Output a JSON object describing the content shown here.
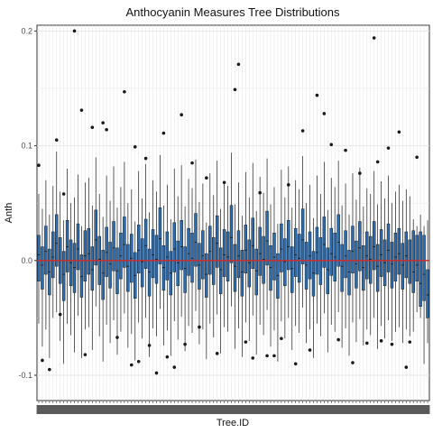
{
  "chart_data": {
    "type": "boxplot",
    "title": "Anthocyanin Measures Tree Distributions",
    "xlabel": "Tree.ID",
    "ylabel": "Anth",
    "ylim": [
      -0.122,
      0.205
    ],
    "yticks": [
      -0.1,
      0.0,
      0.1,
      0.2
    ],
    "ytick_labels": [
      "-0.1",
      "0.0",
      "0.1",
      "0.2"
    ],
    "grid": "on",
    "box_fill": "#2b6cb0",
    "box_stroke": "#1a1a1a",
    "reference_line": {
      "y": 0.0,
      "color": "#d62728"
    },
    "outliers_color": "#1a1a1a",
    "background": "#ffffff",
    "grid_color": "#e6e6e6",
    "n_trees": 110,
    "boxes": [
      {
        "q1": -0.018,
        "median": 0.005,
        "q3": 0.022,
        "low": -0.055,
        "high": 0.058
      },
      {
        "q1": -0.025,
        "median": -0.004,
        "q3": 0.012,
        "low": -0.075,
        "high": 0.045
      },
      {
        "q1": -0.012,
        "median": 0.008,
        "q3": 0.03,
        "low": -0.06,
        "high": 0.07
      },
      {
        "q1": -0.03,
        "median": -0.01,
        "q3": 0.01,
        "low": -0.085,
        "high": 0.04
      },
      {
        "q1": -0.015,
        "median": 0.003,
        "q3": 0.025,
        "low": -0.05,
        "high": 0.065
      },
      {
        "q1": -0.005,
        "median": 0.015,
        "q3": 0.04,
        "low": -0.045,
        "high": 0.095
      },
      {
        "q1": -0.02,
        "median": 0.0,
        "q3": 0.02,
        "low": -0.07,
        "high": 0.06
      },
      {
        "q1": -0.035,
        "median": -0.012,
        "q3": 0.008,
        "low": -0.09,
        "high": 0.035
      },
      {
        "q1": -0.01,
        "median": 0.012,
        "q3": 0.035,
        "low": -0.055,
        "high": 0.08
      },
      {
        "q1": -0.022,
        "median": -0.002,
        "q3": 0.018,
        "low": -0.065,
        "high": 0.05
      },
      {
        "q1": -0.028,
        "median": -0.006,
        "q3": 0.015,
        "low": -0.08,
        "high": 0.055
      },
      {
        "q1": -0.008,
        "median": 0.01,
        "q3": 0.032,
        "low": -0.048,
        "high": 0.075
      },
      {
        "q1": -0.032,
        "median": -0.014,
        "q3": 0.005,
        "low": -0.085,
        "high": 0.03
      },
      {
        "q1": -0.018,
        "median": 0.004,
        "q3": 0.026,
        "low": -0.06,
        "high": 0.068
      },
      {
        "q1": -0.012,
        "median": 0.006,
        "q3": 0.028,
        "low": -0.058,
        "high": 0.072
      },
      {
        "q1": -0.026,
        "median": -0.008,
        "q3": 0.012,
        "low": -0.078,
        "high": 0.048
      },
      {
        "q1": -0.004,
        "median": 0.018,
        "q3": 0.044,
        "low": -0.04,
        "high": 0.09
      },
      {
        "q1": -0.021,
        "median": 0.001,
        "q3": 0.021,
        "low": -0.066,
        "high": 0.058
      },
      {
        "q1": -0.034,
        "median": -0.011,
        "q3": 0.009,
        "low": -0.088,
        "high": 0.038
      },
      {
        "q1": -0.014,
        "median": 0.007,
        "q3": 0.029,
        "low": -0.056,
        "high": 0.074
      },
      {
        "q1": -0.024,
        "median": -0.003,
        "q3": 0.016,
        "low": -0.072,
        "high": 0.052
      },
      {
        "q1": -0.009,
        "median": 0.011,
        "q3": 0.034,
        "low": -0.052,
        "high": 0.082
      },
      {
        "q1": -0.029,
        "median": -0.009,
        "q3": 0.011,
        "low": -0.082,
        "high": 0.046
      },
      {
        "q1": -0.016,
        "median": 0.004,
        "q3": 0.024,
        "low": -0.062,
        "high": 0.064
      },
      {
        "q1": -0.006,
        "median": 0.014,
        "q3": 0.038,
        "low": -0.046,
        "high": 0.086
      },
      {
        "q1": -0.027,
        "median": -0.005,
        "q3": 0.014,
        "low": -0.076,
        "high": 0.05
      },
      {
        "q1": -0.019,
        "median": 0.002,
        "q3": 0.023,
        "low": -0.064,
        "high": 0.062
      },
      {
        "q1": -0.033,
        "median": -0.013,
        "q3": 0.007,
        "low": -0.087,
        "high": 0.034
      },
      {
        "q1": -0.011,
        "median": 0.009,
        "q3": 0.031,
        "low": -0.054,
        "high": 0.078
      },
      {
        "q1": -0.023,
        "median": -0.001,
        "q3": 0.019,
        "low": -0.068,
        "high": 0.054
      },
      {
        "q1": -0.007,
        "median": 0.013,
        "q3": 0.036,
        "low": -0.05,
        "high": 0.084
      },
      {
        "q1": -0.031,
        "median": -0.01,
        "q3": 0.01,
        "low": -0.084,
        "high": 0.042
      },
      {
        "q1": -0.015,
        "median": 0.005,
        "q3": 0.027,
        "low": -0.059,
        "high": 0.07
      },
      {
        "q1": -0.02,
        "median": 0.001,
        "q3": 0.022,
        "low": -0.066,
        "high": 0.06
      },
      {
        "q1": -0.003,
        "median": 0.019,
        "q3": 0.046,
        "low": -0.042,
        "high": 0.092
      },
      {
        "q1": -0.026,
        "median": -0.006,
        "q3": 0.013,
        "low": -0.074,
        "high": 0.048
      },
      {
        "q1": -0.017,
        "median": 0.003,
        "q3": 0.025,
        "low": -0.061,
        "high": 0.066
      },
      {
        "q1": -0.03,
        "median": -0.011,
        "q3": 0.008,
        "low": -0.083,
        "high": 0.036
      },
      {
        "q1": -0.01,
        "median": 0.01,
        "q3": 0.033,
        "low": -0.053,
        "high": 0.08
      },
      {
        "q1": -0.022,
        "median": -0.002,
        "q3": 0.017,
        "low": -0.069,
        "high": 0.056
      },
      {
        "q1": -0.008,
        "median": 0.012,
        "q3": 0.035,
        "low": -0.049,
        "high": 0.083
      },
      {
        "q1": -0.028,
        "median": -0.007,
        "q3": 0.012,
        "low": -0.079,
        "high": 0.047
      },
      {
        "q1": -0.013,
        "median": 0.006,
        "q3": 0.028,
        "low": -0.057,
        "high": 0.071
      },
      {
        "q1": -0.019,
        "median": 0.002,
        "q3": 0.024,
        "low": -0.063,
        "high": 0.063
      },
      {
        "q1": -0.005,
        "median": 0.016,
        "q3": 0.041,
        "low": -0.044,
        "high": 0.088
      },
      {
        "q1": -0.025,
        "median": -0.004,
        "q3": 0.015,
        "low": -0.073,
        "high": 0.051
      },
      {
        "q1": -0.016,
        "median": 0.004,
        "q3": 0.026,
        "low": -0.06,
        "high": 0.067
      },
      {
        "q1": -0.032,
        "median": -0.012,
        "q3": 0.006,
        "low": -0.086,
        "high": 0.033
      },
      {
        "q1": -0.012,
        "median": 0.008,
        "q3": 0.03,
        "low": -0.055,
        "high": 0.076
      },
      {
        "q1": -0.021,
        "median": 0.0,
        "q3": 0.02,
        "low": -0.067,
        "high": 0.057
      },
      {
        "q1": -0.006,
        "median": 0.015,
        "q3": 0.039,
        "low": -0.047,
        "high": 0.087
      },
      {
        "q1": -0.029,
        "median": -0.008,
        "q3": 0.011,
        "low": -0.081,
        "high": 0.045
      },
      {
        "q1": -0.014,
        "median": 0.005,
        "q3": 0.027,
        "low": -0.058,
        "high": 0.069
      },
      {
        "q1": -0.018,
        "median": 0.003,
        "q3": 0.025,
        "low": -0.062,
        "high": 0.065
      },
      {
        "q1": -0.002,
        "median": 0.02,
        "q3": 0.048,
        "low": -0.04,
        "high": 0.094
      },
      {
        "q1": -0.027,
        "median": -0.005,
        "q3": 0.014,
        "low": -0.077,
        "high": 0.049
      },
      {
        "q1": -0.015,
        "median": 0.004,
        "q3": 0.026,
        "low": -0.059,
        "high": 0.068
      },
      {
        "q1": -0.031,
        "median": -0.01,
        "q3": 0.009,
        "low": -0.084,
        "high": 0.039
      },
      {
        "q1": -0.011,
        "median": 0.009,
        "q3": 0.031,
        "low": -0.054,
        "high": 0.077
      },
      {
        "q1": -0.023,
        "median": -0.002,
        "q3": 0.018,
        "low": -0.07,
        "high": 0.055
      },
      {
        "q1": -0.007,
        "median": 0.013,
        "q3": 0.037,
        "low": -0.048,
        "high": 0.085
      },
      {
        "q1": -0.03,
        "median": -0.009,
        "q3": 0.01,
        "low": -0.082,
        "high": 0.043
      },
      {
        "q1": -0.013,
        "median": 0.006,
        "q3": 0.029,
        "low": -0.056,
        "high": 0.073
      },
      {
        "q1": -0.02,
        "median": 0.001,
        "q3": 0.021,
        "low": -0.065,
        "high": 0.059
      },
      {
        "q1": -0.004,
        "median": 0.017,
        "q3": 0.043,
        "low": -0.043,
        "high": 0.089
      },
      {
        "q1": -0.026,
        "median": -0.006,
        "q3": 0.013,
        "low": -0.075,
        "high": 0.049
      },
      {
        "q1": -0.017,
        "median": 0.003,
        "q3": 0.024,
        "low": -0.061,
        "high": 0.064
      },
      {
        "q1": -0.033,
        "median": -0.013,
        "q3": 0.006,
        "low": -0.088,
        "high": 0.032
      },
      {
        "q1": -0.01,
        "median": 0.01,
        "q3": 0.032,
        "low": -0.053,
        "high": 0.079
      },
      {
        "q1": -0.022,
        "median": -0.001,
        "q3": 0.019,
        "low": -0.068,
        "high": 0.055
      },
      {
        "q1": -0.008,
        "median": 0.012,
        "q3": 0.035,
        "low": -0.05,
        "high": 0.082
      },
      {
        "q1": -0.028,
        "median": -0.007,
        "q3": 0.012,
        "low": -0.078,
        "high": 0.046
      },
      {
        "q1": -0.014,
        "median": 0.005,
        "q3": 0.028,
        "low": -0.057,
        "high": 0.07
      },
      {
        "q1": -0.019,
        "median": 0.002,
        "q3": 0.023,
        "low": -0.063,
        "high": 0.062
      },
      {
        "q1": -0.003,
        "median": 0.018,
        "q3": 0.045,
        "low": -0.041,
        "high": 0.091
      },
      {
        "q1": -0.025,
        "median": -0.004,
        "q3": 0.016,
        "low": -0.072,
        "high": 0.05
      },
      {
        "q1": -0.016,
        "median": 0.004,
        "q3": 0.025,
        "low": -0.06,
        "high": 0.066
      },
      {
        "q1": -0.031,
        "median": -0.011,
        "q3": 0.008,
        "low": -0.085,
        "high": 0.037
      },
      {
        "q1": -0.012,
        "median": 0.007,
        "q3": 0.029,
        "low": -0.055,
        "high": 0.074
      },
      {
        "q1": -0.021,
        "median": 0.0,
        "q3": 0.02,
        "low": -0.066,
        "high": 0.058
      },
      {
        "q1": -0.006,
        "median": 0.014,
        "q3": 0.038,
        "low": -0.046,
        "high": 0.086
      },
      {
        "q1": -0.029,
        "median": -0.008,
        "q3": 0.011,
        "low": -0.08,
        "high": 0.044
      },
      {
        "q1": -0.013,
        "median": 0.006,
        "q3": 0.028,
        "low": -0.056,
        "high": 0.072
      },
      {
        "q1": -0.018,
        "median": 0.003,
        "q3": 0.024,
        "low": -0.062,
        "high": 0.064
      },
      {
        "q1": -0.005,
        "median": 0.016,
        "q3": 0.04,
        "low": -0.045,
        "high": 0.087
      },
      {
        "q1": -0.027,
        "median": -0.005,
        "q3": 0.014,
        "low": -0.076,
        "high": 0.048
      },
      {
        "q1": -0.015,
        "median": 0.004,
        "q3": 0.026,
        "low": -0.059,
        "high": 0.067
      },
      {
        "q1": -0.03,
        "median": -0.01,
        "q3": 0.009,
        "low": -0.083,
        "high": 0.04
      },
      {
        "q1": -0.011,
        "median": 0.008,
        "q3": 0.03,
        "low": -0.054,
        "high": 0.076
      },
      {
        "q1": -0.024,
        "median": -0.003,
        "q3": 0.017,
        "low": -0.071,
        "high": 0.053
      },
      {
        "q1": -0.009,
        "median": 0.011,
        "q3": 0.034,
        "low": -0.051,
        "high": 0.081
      },
      {
        "q1": -0.026,
        "median": -0.006,
        "q3": 0.013,
        "low": -0.074,
        "high": 0.047
      },
      {
        "q1": -0.016,
        "median": 0.004,
        "q3": 0.025,
        "low": -0.06,
        "high": 0.063
      },
      {
        "q1": -0.02,
        "median": 0.001,
        "q3": 0.021,
        "low": -0.065,
        "high": 0.058
      },
      {
        "q1": -0.008,
        "median": 0.012,
        "q3": 0.034,
        "low": -0.05,
        "high": 0.078
      },
      {
        "q1": -0.027,
        "median": -0.005,
        "q3": 0.014,
        "low": -0.077,
        "high": 0.049
      },
      {
        "q1": -0.014,
        "median": 0.005,
        "q3": 0.027,
        "low": -0.057,
        "high": 0.069
      },
      {
        "q1": -0.022,
        "median": -0.002,
        "q3": 0.018,
        "low": -0.068,
        "high": 0.054
      },
      {
        "q1": -0.01,
        "median": 0.009,
        "q3": 0.032,
        "low": -0.052,
        "high": 0.074
      },
      {
        "q1": -0.024,
        "median": -0.003,
        "q3": 0.016,
        "low": -0.07,
        "high": 0.05
      },
      {
        "q1": -0.018,
        "median": 0.003,
        "q3": 0.024,
        "low": -0.062,
        "high": 0.06
      },
      {
        "q1": -0.012,
        "median": 0.006,
        "q3": 0.028,
        "low": -0.058,
        "high": 0.066
      },
      {
        "q1": -0.025,
        "median": -0.004,
        "q3": 0.015,
        "low": -0.072,
        "high": 0.052
      },
      {
        "q1": -0.015,
        "median": 0.004,
        "q3": 0.025,
        "low": -0.06,
        "high": 0.062
      },
      {
        "q1": -0.02,
        "median": 0.0,
        "q3": 0.018,
        "low": -0.066,
        "high": 0.056
      },
      {
        "q1": -0.028,
        "median": -0.01,
        "q3": 0.026,
        "low": -0.062,
        "high": 0.036
      },
      {
        "q1": -0.018,
        "median": -0.004,
        "q3": 0.022,
        "low": -0.045,
        "high": 0.03
      },
      {
        "q1": -0.04,
        "median": -0.02,
        "q3": 0.025,
        "low": -0.05,
        "high": 0.04
      },
      {
        "q1": -0.035,
        "median": -0.012,
        "q3": 0.022,
        "low": -0.09,
        "high": 0.03
      },
      {
        "q1": -0.05,
        "median": -0.03,
        "q3": -0.008,
        "low": -0.072,
        "high": 0.035
      }
    ],
    "outliers": [
      {
        "i": 0,
        "y": 0.083
      },
      {
        "i": 1,
        "y": -0.087
      },
      {
        "i": 3,
        "y": -0.095
      },
      {
        "i": 5,
        "y": 0.105
      },
      {
        "i": 6,
        "y": -0.047
      },
      {
        "i": 7,
        "y": 0.058
      },
      {
        "i": 10,
        "y": 0.2
      },
      {
        "i": 12,
        "y": 0.131
      },
      {
        "i": 13,
        "y": -0.082
      },
      {
        "i": 15,
        "y": 0.116
      },
      {
        "i": 18,
        "y": 0.12
      },
      {
        "i": 19,
        "y": 0.114
      },
      {
        "i": 22,
        "y": -0.067
      },
      {
        "i": 24,
        "y": 0.147
      },
      {
        "i": 26,
        "y": -0.091
      },
      {
        "i": 27,
        "y": 0.099
      },
      {
        "i": 28,
        "y": -0.088
      },
      {
        "i": 30,
        "y": 0.089
      },
      {
        "i": 31,
        "y": -0.074
      },
      {
        "i": 33,
        "y": -0.098
      },
      {
        "i": 35,
        "y": 0.111
      },
      {
        "i": 36,
        "y": -0.084
      },
      {
        "i": 38,
        "y": -0.093
      },
      {
        "i": 40,
        "y": 0.127
      },
      {
        "i": 41,
        "y": -0.073
      },
      {
        "i": 43,
        "y": 0.085
      },
      {
        "i": 45,
        "y": -0.058
      },
      {
        "i": 47,
        "y": 0.072
      },
      {
        "i": 50,
        "y": -0.081
      },
      {
        "i": 52,
        "y": 0.068
      },
      {
        "i": 55,
        "y": 0.149
      },
      {
        "i": 56,
        "y": 0.171
      },
      {
        "i": 58,
        "y": -0.071
      },
      {
        "i": 60,
        "y": -0.085
      },
      {
        "i": 62,
        "y": 0.059
      },
      {
        "i": 64,
        "y": -0.083
      },
      {
        "i": 66,
        "y": -0.083
      },
      {
        "i": 68,
        "y": -0.068
      },
      {
        "i": 70,
        "y": 0.066
      },
      {
        "i": 72,
        "y": -0.09
      },
      {
        "i": 74,
        "y": 0.113
      },
      {
        "i": 76,
        "y": -0.078
      },
      {
        "i": 78,
        "y": 0.144
      },
      {
        "i": 80,
        "y": 0.128
      },
      {
        "i": 82,
        "y": 0.101
      },
      {
        "i": 84,
        "y": -0.069
      },
      {
        "i": 86,
        "y": 0.096
      },
      {
        "i": 88,
        "y": -0.089
      },
      {
        "i": 90,
        "y": 0.076
      },
      {
        "i": 92,
        "y": -0.072
      },
      {
        "i": 94,
        "y": 0.194
      },
      {
        "i": 95,
        "y": 0.086
      },
      {
        "i": 96,
        "y": -0.07
      },
      {
        "i": 98,
        "y": 0.098
      },
      {
        "i": 99,
        "y": -0.073
      },
      {
        "i": 101,
        "y": 0.112
      },
      {
        "i": 103,
        "y": -0.093
      },
      {
        "i": 104,
        "y": -0.071
      },
      {
        "i": 106,
        "y": 0.09
      }
    ]
  }
}
